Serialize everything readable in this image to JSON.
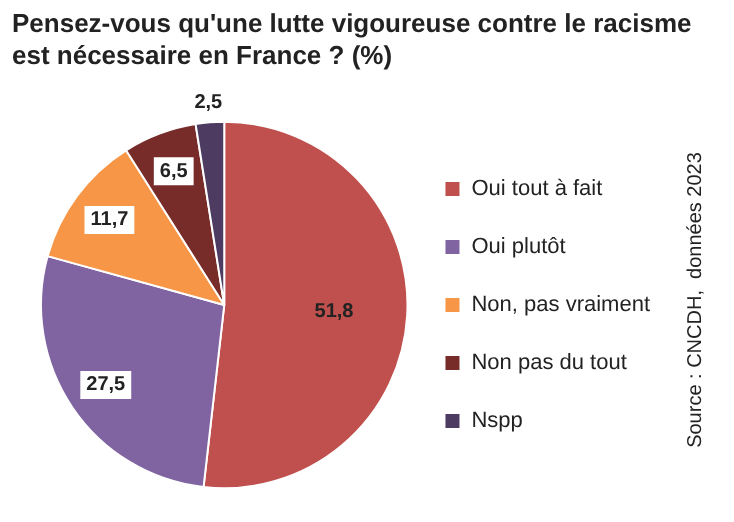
{
  "chart_data": {
    "type": "pie",
    "title": "Pensez-vous qu'une lutte vigoureuse contre le racisme est nécessaire en France ? (%)",
    "categories": [
      "Oui tout à fait",
      "Oui plutôt",
      "Non, pas vraiment",
      "Non pas du tout",
      "Nspp"
    ],
    "values": [
      51.8,
      27.5,
      11.7,
      6.5,
      2.5
    ],
    "colors": [
      "#c0504d",
      "#8064a2",
      "#f79646",
      "#772c2a",
      "#4d3b62"
    ],
    "value_labels": [
      "51,8",
      "27,5",
      "11,7",
      "6,5",
      "2,5"
    ],
    "legend": "right",
    "annotations": [
      "Source : CNCDH,  données 2023"
    ]
  }
}
